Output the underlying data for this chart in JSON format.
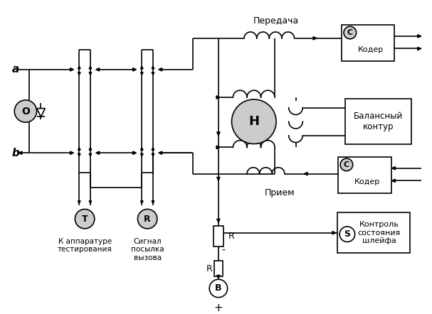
{
  "bg": "#ffffff",
  "lc": "#000000",
  "lw": 1.2,
  "передача": "Передача",
  "прием": "Прием",
  "кодер": "Кодер",
  "балансный": "Балансный\nконтур",
  "контроль": "Контроль\nсостояния\nшлейфа",
  "аппаратура": "К аппаратуре\nтестирования",
  "сигнал": "Сигнал\nпосылка\nвызова"
}
